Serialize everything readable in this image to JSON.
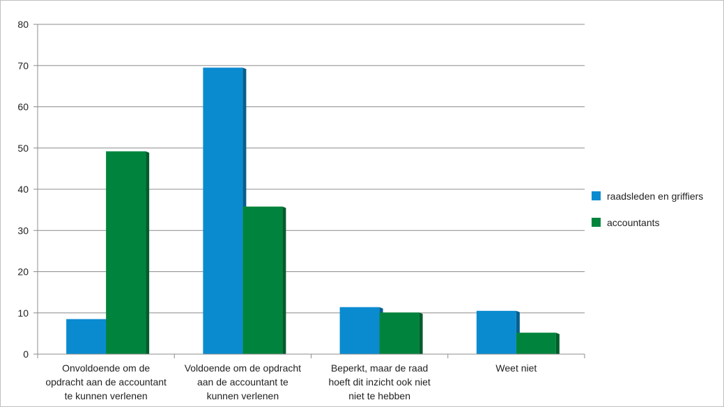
{
  "chart_data": {
    "type": "bar",
    "title": "",
    "xlabel": "",
    "ylabel": "",
    "ylim": [
      0,
      80
    ],
    "yticks": [
      0,
      10,
      20,
      30,
      40,
      50,
      60,
      70,
      80
    ],
    "grid": true,
    "legend_position": "right",
    "categories": [
      [
        "Onvoldoende om de",
        "opdracht aan de accountant",
        "te kunnen verlenen"
      ],
      [
        "Voldoende om de opdracht",
        "aan de accountant te",
        "kunnen verlenen"
      ],
      [
        "Beperkt, maar de raad",
        "hoeft dit inzicht ook niet",
        "niet te hebben"
      ],
      [
        "Weet niet"
      ]
    ],
    "series": [
      {
        "name": "raadsleden en griffiers",
        "color": "#0a8bd0",
        "shade": "#075f8f",
        "values": [
          8.5,
          69.5,
          11.4,
          10.5
        ]
      },
      {
        "name": "accountants",
        "color": "#00843d",
        "shade": "#005d2b",
        "values": [
          49.2,
          35.8,
          10.1,
          5.2
        ]
      }
    ]
  }
}
